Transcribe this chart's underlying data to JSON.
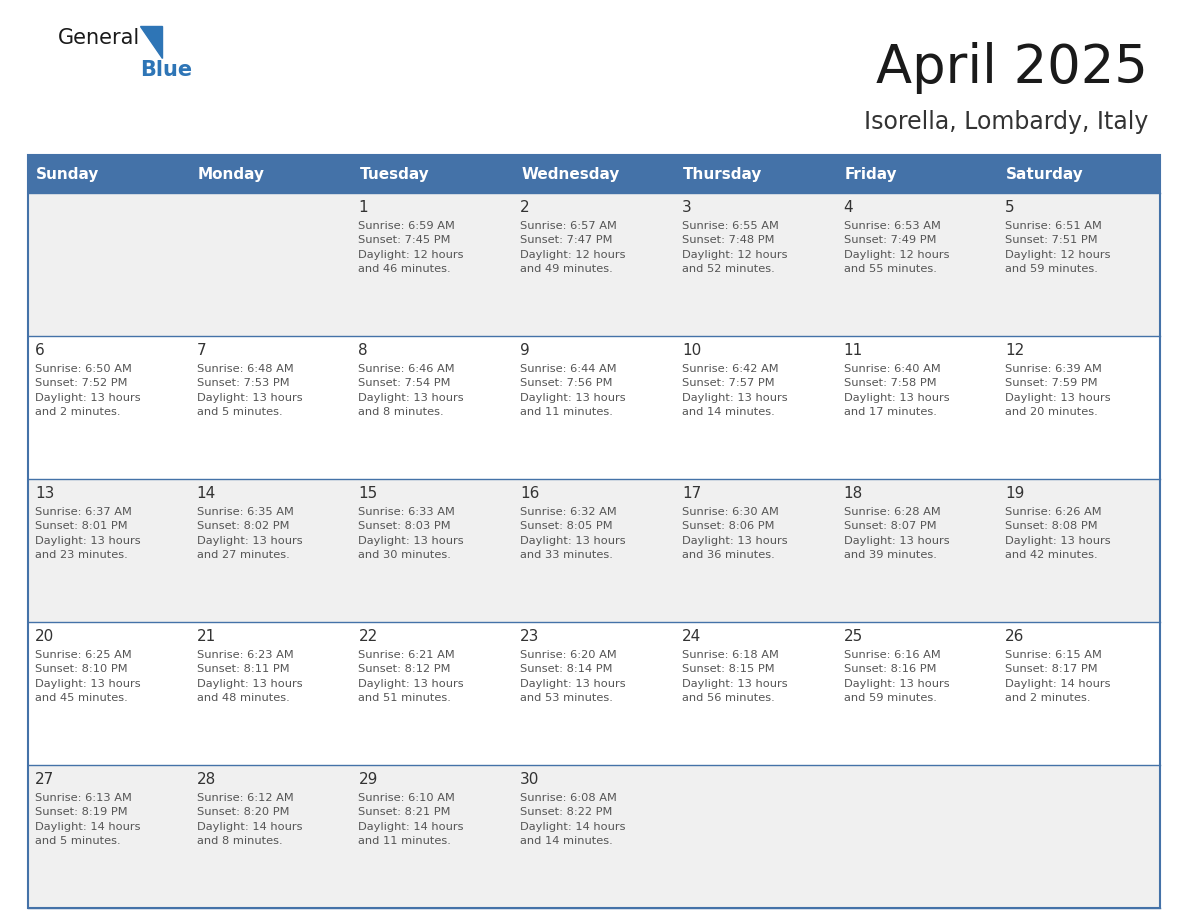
{
  "title": "April 2025",
  "subtitle": "Isorella, Lombardy, Italy",
  "header_bg_color": "#4472a8",
  "header_text_color": "#ffffff",
  "cell_bg_even": "#f0f0f0",
  "cell_bg_odd": "#ffffff",
  "day_number_color": "#333333",
  "cell_text_color": "#555555",
  "grid_line_color": "#4472a8",
  "days_of_week": [
    "Sunday",
    "Monday",
    "Tuesday",
    "Wednesday",
    "Thursday",
    "Friday",
    "Saturday"
  ],
  "weeks": [
    [
      {
        "day": "",
        "info": ""
      },
      {
        "day": "",
        "info": ""
      },
      {
        "day": "1",
        "info": "Sunrise: 6:59 AM\nSunset: 7:45 PM\nDaylight: 12 hours\nand 46 minutes."
      },
      {
        "day": "2",
        "info": "Sunrise: 6:57 AM\nSunset: 7:47 PM\nDaylight: 12 hours\nand 49 minutes."
      },
      {
        "day": "3",
        "info": "Sunrise: 6:55 AM\nSunset: 7:48 PM\nDaylight: 12 hours\nand 52 minutes."
      },
      {
        "day": "4",
        "info": "Sunrise: 6:53 AM\nSunset: 7:49 PM\nDaylight: 12 hours\nand 55 minutes."
      },
      {
        "day": "5",
        "info": "Sunrise: 6:51 AM\nSunset: 7:51 PM\nDaylight: 12 hours\nand 59 minutes."
      }
    ],
    [
      {
        "day": "6",
        "info": "Sunrise: 6:50 AM\nSunset: 7:52 PM\nDaylight: 13 hours\nand 2 minutes."
      },
      {
        "day": "7",
        "info": "Sunrise: 6:48 AM\nSunset: 7:53 PM\nDaylight: 13 hours\nand 5 minutes."
      },
      {
        "day": "8",
        "info": "Sunrise: 6:46 AM\nSunset: 7:54 PM\nDaylight: 13 hours\nand 8 minutes."
      },
      {
        "day": "9",
        "info": "Sunrise: 6:44 AM\nSunset: 7:56 PM\nDaylight: 13 hours\nand 11 minutes."
      },
      {
        "day": "10",
        "info": "Sunrise: 6:42 AM\nSunset: 7:57 PM\nDaylight: 13 hours\nand 14 minutes."
      },
      {
        "day": "11",
        "info": "Sunrise: 6:40 AM\nSunset: 7:58 PM\nDaylight: 13 hours\nand 17 minutes."
      },
      {
        "day": "12",
        "info": "Sunrise: 6:39 AM\nSunset: 7:59 PM\nDaylight: 13 hours\nand 20 minutes."
      }
    ],
    [
      {
        "day": "13",
        "info": "Sunrise: 6:37 AM\nSunset: 8:01 PM\nDaylight: 13 hours\nand 23 minutes."
      },
      {
        "day": "14",
        "info": "Sunrise: 6:35 AM\nSunset: 8:02 PM\nDaylight: 13 hours\nand 27 minutes."
      },
      {
        "day": "15",
        "info": "Sunrise: 6:33 AM\nSunset: 8:03 PM\nDaylight: 13 hours\nand 30 minutes."
      },
      {
        "day": "16",
        "info": "Sunrise: 6:32 AM\nSunset: 8:05 PM\nDaylight: 13 hours\nand 33 minutes."
      },
      {
        "day": "17",
        "info": "Sunrise: 6:30 AM\nSunset: 8:06 PM\nDaylight: 13 hours\nand 36 minutes."
      },
      {
        "day": "18",
        "info": "Sunrise: 6:28 AM\nSunset: 8:07 PM\nDaylight: 13 hours\nand 39 minutes."
      },
      {
        "day": "19",
        "info": "Sunrise: 6:26 AM\nSunset: 8:08 PM\nDaylight: 13 hours\nand 42 minutes."
      }
    ],
    [
      {
        "day": "20",
        "info": "Sunrise: 6:25 AM\nSunset: 8:10 PM\nDaylight: 13 hours\nand 45 minutes."
      },
      {
        "day": "21",
        "info": "Sunrise: 6:23 AM\nSunset: 8:11 PM\nDaylight: 13 hours\nand 48 minutes."
      },
      {
        "day": "22",
        "info": "Sunrise: 6:21 AM\nSunset: 8:12 PM\nDaylight: 13 hours\nand 51 minutes."
      },
      {
        "day": "23",
        "info": "Sunrise: 6:20 AM\nSunset: 8:14 PM\nDaylight: 13 hours\nand 53 minutes."
      },
      {
        "day": "24",
        "info": "Sunrise: 6:18 AM\nSunset: 8:15 PM\nDaylight: 13 hours\nand 56 minutes."
      },
      {
        "day": "25",
        "info": "Sunrise: 6:16 AM\nSunset: 8:16 PM\nDaylight: 13 hours\nand 59 minutes."
      },
      {
        "day": "26",
        "info": "Sunrise: 6:15 AM\nSunset: 8:17 PM\nDaylight: 14 hours\nand 2 minutes."
      }
    ],
    [
      {
        "day": "27",
        "info": "Sunrise: 6:13 AM\nSunset: 8:19 PM\nDaylight: 14 hours\nand 5 minutes."
      },
      {
        "day": "28",
        "info": "Sunrise: 6:12 AM\nSunset: 8:20 PM\nDaylight: 14 hours\nand 8 minutes."
      },
      {
        "day": "29",
        "info": "Sunrise: 6:10 AM\nSunset: 8:21 PM\nDaylight: 14 hours\nand 11 minutes."
      },
      {
        "day": "30",
        "info": "Sunrise: 6:08 AM\nSunset: 8:22 PM\nDaylight: 14 hours\nand 14 minutes."
      },
      {
        "day": "",
        "info": ""
      },
      {
        "day": "",
        "info": ""
      },
      {
        "day": "",
        "info": ""
      }
    ]
  ]
}
